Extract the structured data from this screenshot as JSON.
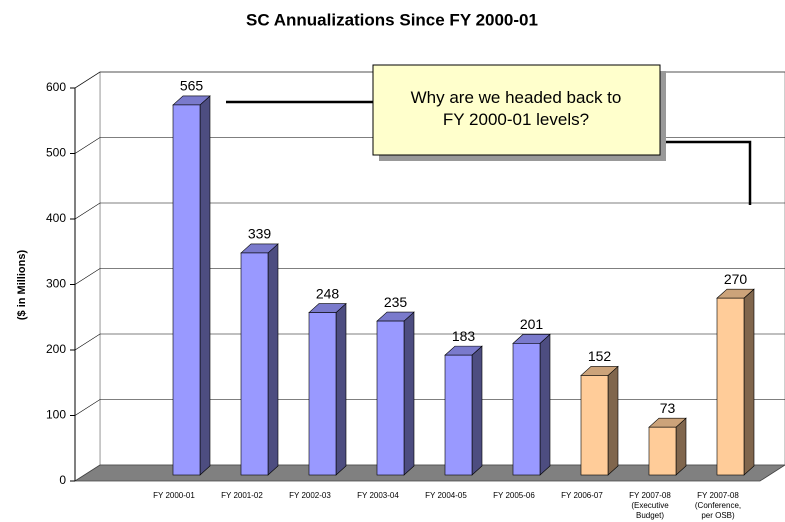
{
  "chart_data": {
    "type": "bar3d",
    "title": "SC Annualizations Since FY 2000-01",
    "y_label": "($ in Millions)",
    "annotation": "Why are we headed back to\nFY 2000-01 levels?",
    "categories": [
      "FY 2000-01",
      "FY 2001-02",
      "FY 2002-03",
      "FY 2003-04",
      "FY 2004-05",
      "FY 2005-06",
      "FY 2006-07",
      "FY 2007-08\n(Executive\nBudget)",
      "FY 2007-08\n(Conference,\nper OSB)"
    ],
    "values": [
      565,
      339,
      248,
      235,
      183,
      201,
      152,
      73,
      270
    ],
    "colors": [
      "#9999ff",
      "#9999ff",
      "#9999ff",
      "#9999ff",
      "#9999ff",
      "#9999ff",
      "#ffcc99",
      "#ffcc99",
      "#ffcc99"
    ],
    "ylim": [
      0,
      600
    ],
    "yticks": [
      0,
      100,
      200,
      300,
      400,
      500,
      600
    ],
    "grid": true
  }
}
